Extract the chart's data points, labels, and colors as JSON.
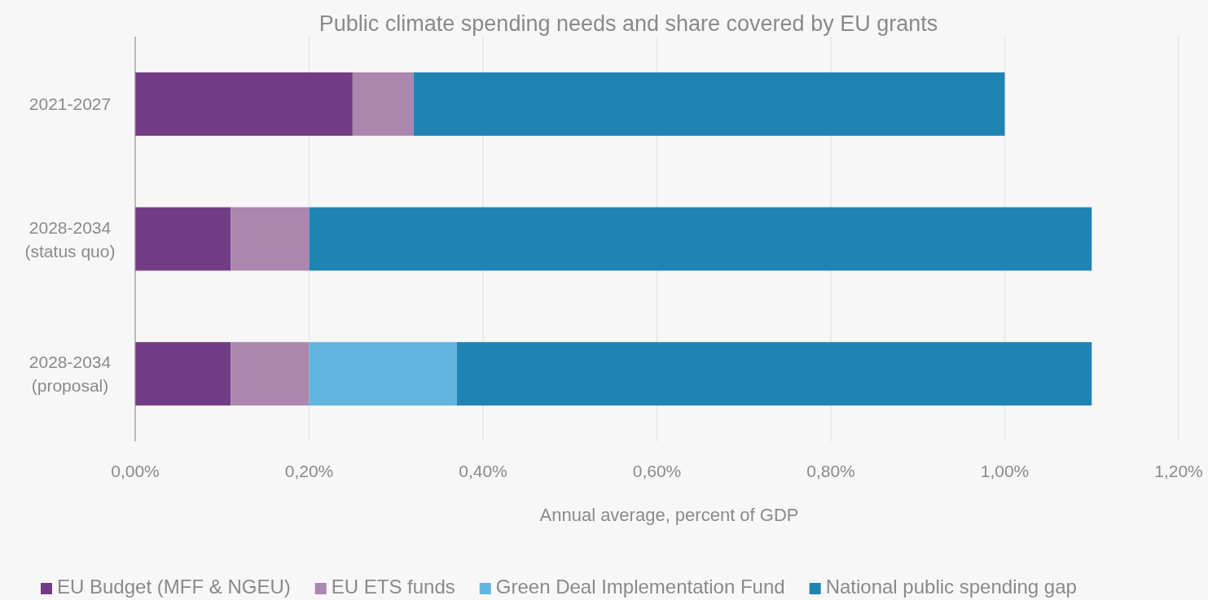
{
  "chart_data": {
    "type": "bar",
    "orientation": "horizontal",
    "stacked": true,
    "title": "Public climate spending needs and share covered by EU grants",
    "xlabel": "Annual average, percent of GDP",
    "categories": [
      "2021-2027",
      "2028-2034\n(status quo)",
      "2028-2034\n(proposal)"
    ],
    "series": [
      {
        "name": "EU Budget (MFF & NGEU)",
        "color": "#723d86",
        "values": [
          0.25,
          0.11,
          0.11
        ]
      },
      {
        "name": "EU ETS funds",
        "color": "#ab86ae",
        "values": [
          0.07,
          0.09,
          0.09
        ]
      },
      {
        "name": "Green Deal Implementation Fund",
        "color": "#62b5e0",
        "values": [
          0,
          0,
          0.17
        ]
      },
      {
        "name": "National public spending gap",
        "color": "#1f83b4",
        "values": [
          0.68,
          0.9,
          0.73
        ]
      }
    ],
    "xlim": [
      0,
      1.2
    ],
    "xticks": [
      {
        "value": 0,
        "label": "0,00%"
      },
      {
        "value": 0.2,
        "label": "0,20%"
      },
      {
        "value": 0.4,
        "label": "0,40%"
      },
      {
        "value": 0.6,
        "label": "0,60%"
      },
      {
        "value": 0.8,
        "label": "0,80%"
      },
      {
        "value": 1,
        "label": "1,00%"
      },
      {
        "value": 1.2,
        "label": "1,20%"
      }
    ],
    "grid": "x",
    "legend": "bottom"
  }
}
